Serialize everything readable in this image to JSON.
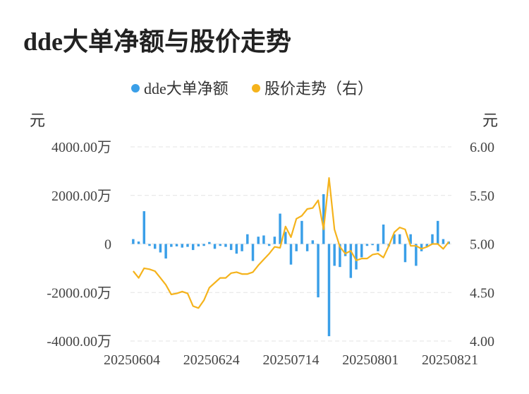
{
  "title": "dde大单净额与股价走势",
  "chart_data": {
    "type": "bar+line",
    "x_ticks": [
      "20250604",
      "20250624",
      "20250714",
      "20250801",
      "20250821"
    ],
    "y_left": {
      "unit": "元",
      "ticks": [
        "4000.00万",
        "2000.00万",
        "0",
        "-2000.00万",
        "-4000.00万"
      ],
      "range": [
        -4000,
        4000
      ],
      "unit_scale": "万元"
    },
    "y_right": {
      "unit": "元",
      "ticks": [
        "6.00",
        "5.50",
        "5.00",
        "4.50",
        "4.00"
      ],
      "range": [
        4.0,
        6.0
      ]
    },
    "grid": true,
    "legend_position": "top-center",
    "series": [
      {
        "name": "dde大单净额",
        "type": "bar",
        "axis": "left",
        "color": "#3a9fe8",
        "values": [
          200,
          100,
          1350,
          -80,
          -200,
          -350,
          -600,
          -120,
          -100,
          -150,
          -120,
          -250,
          -100,
          -80,
          80,
          -200,
          -80,
          -120,
          -250,
          -400,
          -300,
          400,
          -700,
          300,
          350,
          -80,
          300,
          1250,
          500,
          -850,
          -300,
          950,
          -300,
          150,
          -2200,
          2050,
          -3800,
          -900,
          -950,
          -500,
          -1400,
          -1050,
          -550,
          -80,
          -50,
          -300,
          800,
          -100,
          400,
          400,
          -750,
          400,
          -900,
          -300,
          -100,
          400,
          950,
          200,
          100
        ]
      },
      {
        "name": "股价走势（右）",
        "type": "line",
        "axis": "right",
        "color": "#f5b31c",
        "values": [
          4.72,
          4.65,
          4.75,
          4.74,
          4.72,
          4.65,
          4.58,
          4.48,
          4.49,
          4.51,
          4.49,
          4.36,
          4.34,
          4.42,
          4.55,
          4.6,
          4.65,
          4.65,
          4.7,
          4.71,
          4.69,
          4.69,
          4.71,
          4.78,
          4.84,
          4.9,
          4.97,
          4.96,
          5.18,
          5.07,
          5.26,
          5.29,
          5.36,
          5.37,
          5.45,
          5.15,
          5.68,
          5.15,
          4.97,
          4.9,
          4.93,
          4.83,
          4.85,
          4.85,
          4.89,
          4.9,
          4.86,
          4.98,
          5.12,
          5.17,
          5.15,
          4.98,
          4.98,
          4.95,
          4.97,
          5.0,
          5.0,
          4.95,
          5.02
        ]
      }
    ]
  }
}
